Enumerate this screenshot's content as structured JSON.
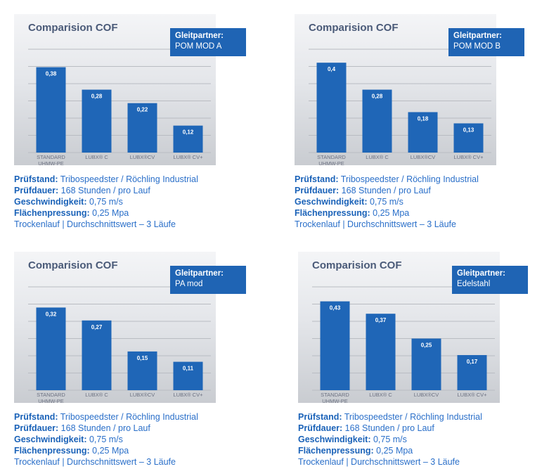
{
  "common": {
    "chart_title": "Comparision COF",
    "partner_label": "Gleitpartner:",
    "info": [
      {
        "label": "Prüfstand:",
        "value": " Tribospeedster / Röchling Industrial"
      },
      {
        "label": "Prüfdauer:",
        "value": " 168 Stunden / pro Lauf"
      },
      {
        "label": "Geschwindigkeit:",
        "value": " 0,75 m/s"
      },
      {
        "label": "Flächenpressung:",
        "value": " 0,25 Mpa"
      },
      {
        "label": "",
        "value": "Trockenlauf  | Durchschnittswert – 3 Läufe"
      }
    ]
  },
  "colors": {
    "bar": "#1f66b7",
    "partner_bg": "#1f64b4",
    "info_text": "#2a6fc9"
  },
  "chart_data": [
    {
      "type": "bar",
      "title": "Comparision COF",
      "partner": "POM MOD A",
      "categories": [
        "STANDARD\nUHMW-PE",
        "LUBX® C",
        "LUBX®CV",
        "LUBX® CV+"
      ],
      "values": [
        0.38,
        0.28,
        0.22,
        0.12
      ],
      "labels": [
        "0,38",
        "0,28",
        "0,22",
        "0,12"
      ],
      "ylim": [
        0,
        0.46
      ],
      "grid": true,
      "legend": "top-right"
    },
    {
      "type": "bar",
      "title": "Comparision COF",
      "partner": "POM MOD B",
      "categories": [
        "STANDARD\nUHMW-PE",
        "LUBX® C",
        "LUBX®CV",
        "LUBX® CV+"
      ],
      "values": [
        0.4,
        0.28,
        0.18,
        0.13
      ],
      "labels": [
        "0,4",
        "0,28",
        "0,18",
        "0,13"
      ],
      "ylim": [
        0,
        0.46
      ],
      "grid": true,
      "legend": "top-right"
    },
    {
      "type": "bar",
      "title": "Comparision COF",
      "partner": "PA mod",
      "categories": [
        "STANDARD\nUHMW-PE",
        "LUBX® C",
        "LUBX®CV",
        "LUBX® CV+"
      ],
      "values": [
        0.32,
        0.27,
        0.15,
        0.11
      ],
      "labels": [
        "0,32",
        "0,27",
        "0,15",
        "0,11"
      ],
      "ylim": [
        0,
        0.4
      ],
      "grid": true,
      "legend": "top-right"
    },
    {
      "type": "bar",
      "title": "Comparision COF",
      "partner": "Edelstahl",
      "categories": [
        "STANDARD\nUHMW-PE",
        "LUBX® C",
        "LUBX®CV",
        "LUBX® CV+"
      ],
      "values": [
        0.43,
        0.37,
        0.25,
        0.17
      ],
      "labels": [
        "0,43",
        "0,37",
        "0,25",
        "0,17"
      ],
      "ylim": [
        0,
        0.5
      ],
      "grid": true,
      "legend": "top-right"
    }
  ]
}
